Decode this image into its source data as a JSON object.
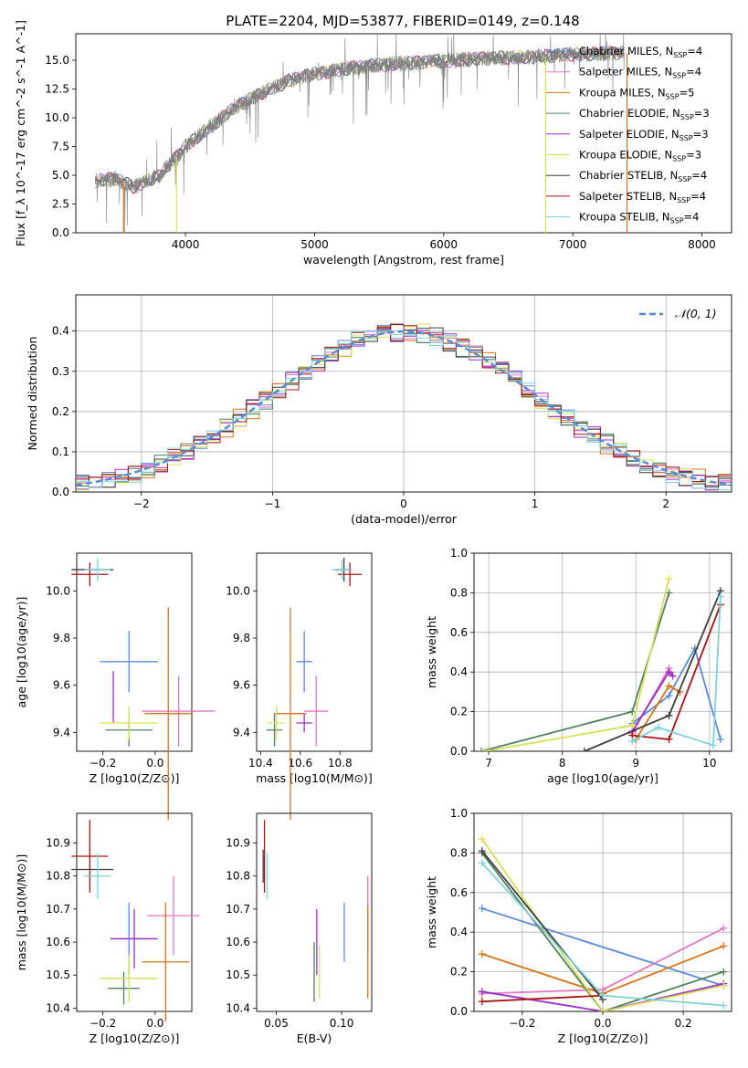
{
  "figure": {
    "title": "PLATE=2204, MJD=53877, FIBERID=0149, z=0.148"
  },
  "series_styles": [
    {
      "name": "Chabrier MILES",
      "nssp": "4",
      "color": "#5b8bd6"
    },
    {
      "name": "Salpeter MILES",
      "nssp": "4",
      "color": "#e377c2"
    },
    {
      "name": "Kroupa MILES",
      "nssp": "5",
      "color": "#d9741b"
    },
    {
      "name": "Chabrier ELODIE",
      "nssp": "3",
      "color": "#4f7f5c"
    },
    {
      "name": "Salpeter ELODIE",
      "nssp": "3",
      "color": "#9b30c8"
    },
    {
      "name": "Kroupa ELODIE",
      "nssp": "3",
      "color": "#d6e05a"
    },
    {
      "name": "Chabrier STELIB",
      "nssp": "4",
      "color": "#3d3d3d"
    },
    {
      "name": "Salpeter STELIB",
      "nssp": "4",
      "color": "#a81414"
    },
    {
      "name": "Kroupa STELIB",
      "nssp": "4",
      "color": "#7dd3dc"
    }
  ],
  "chart_data": [
    {
      "id": "spectrum",
      "type": "line",
      "title": "PLATE=2204, MJD=53877, FIBERID=0149, z=0.148",
      "xlabel": "wavelength [Angstrom, rest frame]",
      "ylabel": "Flux [f_λ 10^-17 erg cm^-2 s^-1 A^-1]",
      "xlim": [
        3150,
        8230
      ],
      "ylim": [
        0,
        17.3
      ],
      "xticks": [
        4000,
        5000,
        6000,
        7000,
        8000
      ],
      "yticks": [
        0.0,
        2.5,
        5.0,
        7.5,
        10.0,
        12.5,
        15.0
      ],
      "ytick_labels": [
        "0.0",
        "2.5",
        "5.0",
        "7.5",
        "10.0",
        "12.5",
        "15.0"
      ],
      "legend_position": "top-right",
      "data_series": {
        "name": "data",
        "color": "#808080"
      },
      "continuum_knots": {
        "x": [
          3300,
          3450,
          3600,
          3800,
          4000,
          4200,
          4400,
          4600,
          4800,
          5000,
          5200,
          5500,
          5800,
          6100,
          6400,
          6700,
          7000,
          7300
        ],
        "y": [
          4.5,
          4.7,
          4.0,
          5.0,
          7.5,
          9.3,
          11.0,
          12.2,
          13.2,
          13.8,
          14.2,
          14.6,
          14.8,
          15.0,
          15.2,
          15.3,
          15.5,
          15.6
        ]
      },
      "data_range": [
        3300,
        7400
      ],
      "model_drop_lines": [
        {
          "x": 3520,
          "series": 2
        },
        {
          "x": 3930,
          "series": 5
        },
        {
          "x": 6790,
          "series": 5
        },
        {
          "x": 7420,
          "series": 2
        }
      ]
    },
    {
      "id": "residuals",
      "type": "bar",
      "xlabel": "(data-model)/error",
      "ylabel": "Normed distribution",
      "xlim": [
        -2.5,
        2.5
      ],
      "ylim": [
        0,
        0.49
      ],
      "xticks": [
        -2,
        -1,
        0,
        1,
        2
      ],
      "xtick_labels": [
        "−2",
        "−1",
        "0",
        "1",
        "2"
      ],
      "yticks": [
        0.0,
        0.1,
        0.2,
        0.3,
        0.4
      ],
      "ytick_labels": [
        "0.0",
        "0.1",
        "0.2",
        "0.3",
        "0.4"
      ],
      "grid": true,
      "legend_label": "𝒩(0, 1)",
      "legend_position": "top-right",
      "gaussian_color": "#5b8bd6",
      "bin_width": 0.1
    },
    {
      "id": "age_vs_Z",
      "type": "scatter",
      "xlabel": "Z [log10(Z/Z⊙)]",
      "ylabel": "age [log10(age/yr)]",
      "xlim": [
        -0.3,
        0.14
      ],
      "ylim": [
        9.32,
        10.16
      ],
      "xticks": [
        -0.2,
        0.0
      ],
      "xtick_labels": [
        "−0.2",
        "0.0"
      ],
      "yticks": [
        9.4,
        9.6,
        9.8,
        10.0
      ],
      "ytick_labels": [
        "9.4",
        "9.6",
        "9.8",
        "10.0"
      ],
      "points": [
        {
          "series": 0,
          "x": -0.1,
          "y": 9.7,
          "xerr": 0.11,
          "yerr": 0.13
        },
        {
          "series": 1,
          "x": 0.09,
          "y": 9.49,
          "xerr": 0.14,
          "yerr": 0.15
        },
        {
          "series": 2,
          "x": 0.05,
          "y": 9.48,
          "xerr": 0.09,
          "yerr": 0.45
        },
        {
          "series": 3,
          "x": -0.1,
          "y": 9.41,
          "xerr": 0.09,
          "yerr": 0.07
        },
        {
          "series": 4,
          "x": -0.16,
          "y": 9.55,
          "xerr": 0.0,
          "yerr": 0.11
        },
        {
          "series": 5,
          "x": -0.1,
          "y": 9.44,
          "xerr": 0.11,
          "yerr": 0.07
        },
        {
          "series": 6,
          "x": -0.24,
          "y": 10.09,
          "xerr": 0.08,
          "yerr": 0.0
        },
        {
          "series": 7,
          "x": -0.25,
          "y": 10.07,
          "xerr": 0.07,
          "yerr": 0.05
        },
        {
          "series": 8,
          "x": -0.22,
          "y": 10.09,
          "xerr": 0.05,
          "yerr": 0.05
        }
      ]
    },
    {
      "id": "age_vs_mass",
      "type": "scatter",
      "xlabel": "mass [log10(M/M⊙)]",
      "ylabel": "",
      "xlim": [
        10.38,
        10.96
      ],
      "ylim": [
        9.32,
        10.16
      ],
      "xticks": [
        10.4,
        10.6,
        10.8
      ],
      "xtick_labels": [
        "10.4",
        "10.6",
        "10.8"
      ],
      "yticks": [
        9.4,
        9.6,
        9.8,
        10.0
      ],
      "ytick_labels": [
        "9.4",
        "9.6",
        "9.8",
        "10.0"
      ],
      "points": [
        {
          "series": 0,
          "x": 10.62,
          "y": 9.7,
          "xerr": 0.04,
          "yerr": 0.13
        },
        {
          "series": 1,
          "x": 10.68,
          "y": 9.49,
          "xerr": 0.06,
          "yerr": 0.15
        },
        {
          "series": 2,
          "x": 10.55,
          "y": 9.48,
          "xerr": 0.08,
          "yerr": 0.45
        },
        {
          "series": 3,
          "x": 10.47,
          "y": 9.41,
          "xerr": 0.04,
          "yerr": 0.07
        },
        {
          "series": 4,
          "x": 10.62,
          "y": 9.44,
          "xerr": 0.04,
          "yerr": 0.04
        },
        {
          "series": 5,
          "x": 10.48,
          "y": 9.44,
          "xerr": 0.04,
          "yerr": 0.07
        },
        {
          "series": 6,
          "x": 10.82,
          "y": 10.09,
          "xerr": 0.04,
          "yerr": 0.05
        },
        {
          "series": 7,
          "x": 10.85,
          "y": 10.07,
          "xerr": 0.06,
          "yerr": 0.05
        },
        {
          "series": 8,
          "x": 10.81,
          "y": 10.09,
          "xerr": 0.05,
          "yerr": 0.04
        }
      ]
    },
    {
      "id": "weight_vs_age",
      "type": "line",
      "xlabel": "age [log10(age/yr)]",
      "ylabel": "mass weight",
      "xlim": [
        6.8,
        10.3
      ],
      "ylim": [
        0,
        1.0
      ],
      "xticks": [
        7,
        8,
        9,
        10
      ],
      "xtick_labels": [
        "7",
        "8",
        "9",
        "10"
      ],
      "yticks": [
        0.0,
        0.2,
        0.4,
        0.6,
        0.8,
        1.0
      ],
      "ytick_labels": [
        "0.0",
        "0.2",
        "0.4",
        "0.6",
        "0.8",
        "1.0"
      ],
      "grid": true,
      "series": [
        {
          "series": 0,
          "x": [
            8.95,
            9.45,
            9.8,
            10.15
          ],
          "y": [
            0.14,
            0.28,
            0.52,
            0.06
          ]
        },
        {
          "series": 1,
          "x": [
            8.95,
            9.45,
            9.5
          ],
          "y": [
            0.09,
            0.42,
            0.38
          ]
        },
        {
          "series": 2,
          "x": [
            9.0,
            9.45,
            9.6
          ],
          "y": [
            0.06,
            0.33,
            0.3
          ]
        },
        {
          "series": 3,
          "x": [
            6.9,
            8.95,
            9.45
          ],
          "y": [
            0.0,
            0.2,
            0.8
          ]
        },
        {
          "series": 4,
          "x": [
            8.95,
            9.45,
            9.5
          ],
          "y": [
            0.1,
            0.4,
            0.38
          ]
        },
        {
          "series": 5,
          "x": [
            6.95,
            8.95,
            9.45
          ],
          "y": [
            0.0,
            0.13,
            0.87
          ]
        },
        {
          "series": 6,
          "x": [
            8.3,
            9.45,
            10.15
          ],
          "y": [
            0.0,
            0.18,
            0.81
          ]
        },
        {
          "series": 7,
          "x": [
            8.95,
            9.45,
            10.15
          ],
          "y": [
            0.08,
            0.06,
            0.74
          ]
        },
        {
          "series": 8,
          "x": [
            8.95,
            9.3,
            10.05,
            10.15
          ],
          "y": [
            0.05,
            0.12,
            0.03,
            0.78
          ]
        }
      ]
    },
    {
      "id": "mass_vs_Z",
      "type": "scatter",
      "xlabel": "Z [log10(Z/Z⊙)]",
      "ylabel": "mass [log10(M/M⊙)]",
      "xlim": [
        -0.3,
        0.14
      ],
      "ylim": [
        10.39,
        10.99
      ],
      "xticks": [
        -0.2,
        0.0
      ],
      "xtick_labels": [
        "−0.2",
        "0.0"
      ],
      "yticks": [
        10.4,
        10.5,
        10.6,
        10.7,
        10.8,
        10.9
      ],
      "ytick_labels": [
        "10.4",
        "10.5",
        "10.6",
        "10.7",
        "10.8",
        "10.9"
      ],
      "points": [
        {
          "series": 0,
          "x": -0.1,
          "y": 10.61,
          "xerr": 0.07,
          "yerr": 0.11
        },
        {
          "series": 1,
          "x": 0.07,
          "y": 10.68,
          "xerr": 0.1,
          "yerr": 0.12
        },
        {
          "series": 2,
          "x": 0.04,
          "y": 10.54,
          "xerr": 0.09,
          "yerr": 0.18
        },
        {
          "series": 3,
          "x": -0.12,
          "y": 10.46,
          "xerr": 0.06,
          "yerr": 0.05
        },
        {
          "series": 4,
          "x": -0.08,
          "y": 10.61,
          "xerr": 0.09,
          "yerr": 0.09
        },
        {
          "series": 5,
          "x": -0.1,
          "y": 10.49,
          "xerr": 0.11,
          "yerr": 0.07
        },
        {
          "series": 6,
          "x": -0.24,
          "y": 10.82,
          "xerr": 0.08,
          "yerr": 0.0
        },
        {
          "series": 7,
          "x": -0.25,
          "y": 10.86,
          "xerr": 0.07,
          "yerr": 0.11
        },
        {
          "series": 8,
          "x": -0.22,
          "y": 10.8,
          "xerr": 0.05,
          "yerr": 0.07
        }
      ]
    },
    {
      "id": "mass_vs_EBV",
      "type": "scatter",
      "xlabel": "E(B-V)",
      "ylabel": "",
      "xlim": [
        0.035,
        0.123
      ],
      "ylim": [
        10.39,
        10.99
      ],
      "xticks": [
        0.05,
        0.1
      ],
      "xtick_labels": [
        "0.05",
        "0.10"
      ],
      "yticks": [
        10.4,
        10.5,
        10.6,
        10.7,
        10.8,
        10.9
      ],
      "ytick_labels": [
        "10.4",
        "10.5",
        "10.6",
        "10.7",
        "10.8",
        "10.9"
      ],
      "points": [
        {
          "series": 0,
          "x": 0.102,
          "y": 10.63,
          "xerr": 0,
          "yerr": 0.09
        },
        {
          "series": 1,
          "x": 0.12,
          "y": 10.68,
          "xerr": 0,
          "yerr": 0.12
        },
        {
          "series": 2,
          "x": 0.12,
          "y": 10.57,
          "xerr": 0,
          "yerr": 0.14
        },
        {
          "series": 3,
          "x": 0.079,
          "y": 10.51,
          "xerr": 0,
          "yerr": 0.09
        },
        {
          "series": 4,
          "x": 0.081,
          "y": 10.6,
          "xerr": 0,
          "yerr": 0.1
        },
        {
          "series": 5,
          "x": 0.083,
          "y": 10.51,
          "xerr": 0,
          "yerr": 0.08
        },
        {
          "series": 6,
          "x": 0.04,
          "y": 10.83,
          "xerr": 0,
          "yerr": 0.05
        },
        {
          "series": 7,
          "x": 0.041,
          "y": 10.86,
          "xerr": 0,
          "yerr": 0.11
        },
        {
          "series": 8,
          "x": 0.043,
          "y": 10.8,
          "xerr": 0,
          "yerr": 0.07
        }
      ]
    },
    {
      "id": "weight_vs_Z",
      "type": "line",
      "xlabel": "Z [log10(Z/Z⊙)]",
      "ylabel": "mass weight",
      "xlim": [
        -0.32,
        0.32
      ],
      "ylim": [
        0,
        1.0
      ],
      "xticks": [
        -0.2,
        0.0,
        0.2
      ],
      "xtick_labels": [
        "−0.2",
        "0.0",
        "0.2"
      ],
      "yticks": [
        0.0,
        0.2,
        0.4,
        0.6,
        0.8,
        1.0
      ],
      "ytick_labels": [
        "0.0",
        "0.2",
        "0.4",
        "0.6",
        "0.8",
        "1.0"
      ],
      "grid": true,
      "series": [
        {
          "series": 0,
          "x": [
            -0.3,
            0.3
          ],
          "y": [
            0.52,
            0.13
          ]
        },
        {
          "series": 1,
          "x": [
            -0.3,
            0.0,
            0.3
          ],
          "y": [
            0.09,
            0.11,
            0.42
          ]
        },
        {
          "series": 2,
          "x": [
            -0.3,
            0.0,
            0.3
          ],
          "y": [
            0.29,
            0.09,
            0.33
          ]
        },
        {
          "series": 3,
          "x": [
            -0.3,
            0.0,
            0.3
          ],
          "y": [
            0.8,
            0.0,
            0.2
          ]
        },
        {
          "series": 4,
          "x": [
            -0.3,
            0.0,
            0.3
          ],
          "y": [
            0.1,
            0.0,
            0.14
          ]
        },
        {
          "series": 5,
          "x": [
            -0.3,
            0.0,
            0.3
          ],
          "y": [
            0.87,
            0.0,
            0.13
          ]
        },
        {
          "series": 6,
          "x": [
            -0.3,
            0.0
          ],
          "y": [
            0.81,
            0.06
          ]
        },
        {
          "series": 7,
          "x": [
            -0.3,
            0.0
          ],
          "y": [
            0.05,
            0.08
          ]
        },
        {
          "series": 8,
          "x": [
            -0.3,
            0.0,
            0.3
          ],
          "y": [
            0.75,
            0.08,
            0.03
          ]
        }
      ]
    }
  ]
}
